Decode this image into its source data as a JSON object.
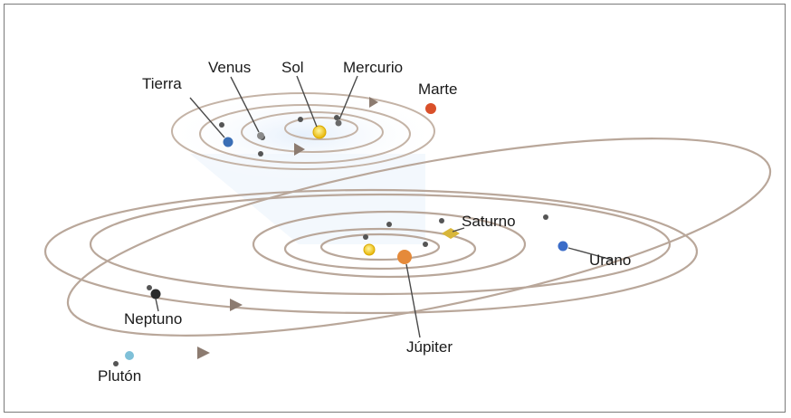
{
  "planets": {
    "tierra": "Tierra",
    "venus": "Venus",
    "sol": "Sol",
    "mercurio": "Mercurio",
    "marte": "Marte",
    "saturno": "Saturno",
    "urano": "Urano",
    "neptuno": "Neptuno",
    "jupiter": "Júpiter",
    "pluton": "Plutón"
  },
  "colors": {
    "orbit": "#b9a79a",
    "sun": "#f2c200",
    "earth": "#3b6fb6",
    "mars": "#d9502a",
    "jupiter": "#e58a3a",
    "saturn": "#d8b63a",
    "uranus": "#3a6cc8",
    "neptune": "#2a2a2a",
    "pluto": "#7fc0d8",
    "inset_glow": "#e8f1fb"
  }
}
